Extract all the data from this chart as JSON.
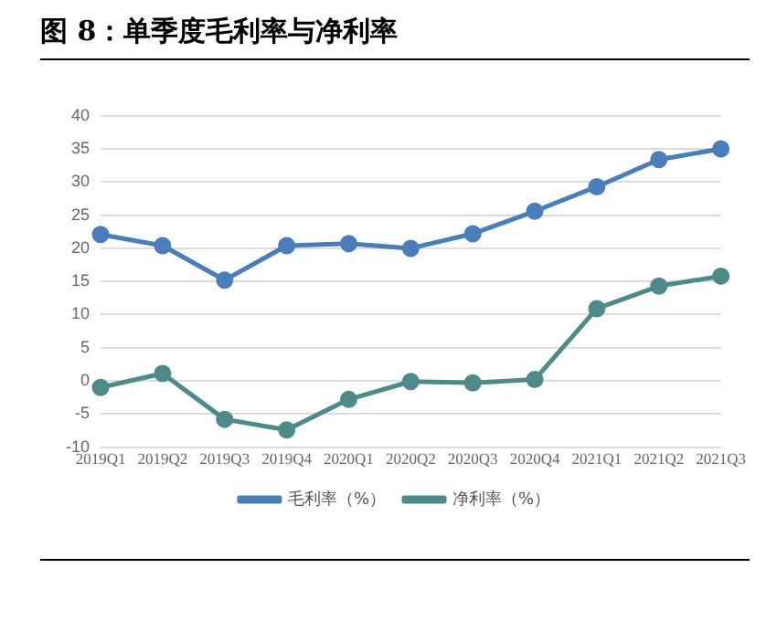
{
  "chart_data": {
    "type": "line",
    "title": "图 8：单季度毛利率与净利率",
    "categories": [
      "2019Q1",
      "2019Q2",
      "2019Q3",
      "2019Q4",
      "2020Q1",
      "2020Q2",
      "2020Q3",
      "2020Q4",
      "2021Q1",
      "2021Q2",
      "2021Q3"
    ],
    "series": [
      {
        "name": "毛利率（%）",
        "color": "#4a7ebb",
        "values": [
          22.1,
          20.4,
          15.2,
          20.4,
          20.7,
          20.0,
          22.2,
          25.6,
          29.3,
          33.4,
          35.0
        ]
      },
      {
        "name": "净利率（%）",
        "color": "#4f8a8b",
        "values": [
          -1.0,
          1.1,
          -5.8,
          -7.4,
          -2.8,
          -0.1,
          -0.3,
          0.2,
          10.9,
          14.3,
          15.8
        ]
      }
    ],
    "ylim": [
      -10,
      40
    ],
    "yticks": [
      -10,
      -5,
      0,
      5,
      10,
      15,
      20,
      25,
      30,
      35,
      40
    ],
    "grid": "y",
    "legend": "bottom",
    "marker": "circle",
    "line_style": "solid"
  }
}
